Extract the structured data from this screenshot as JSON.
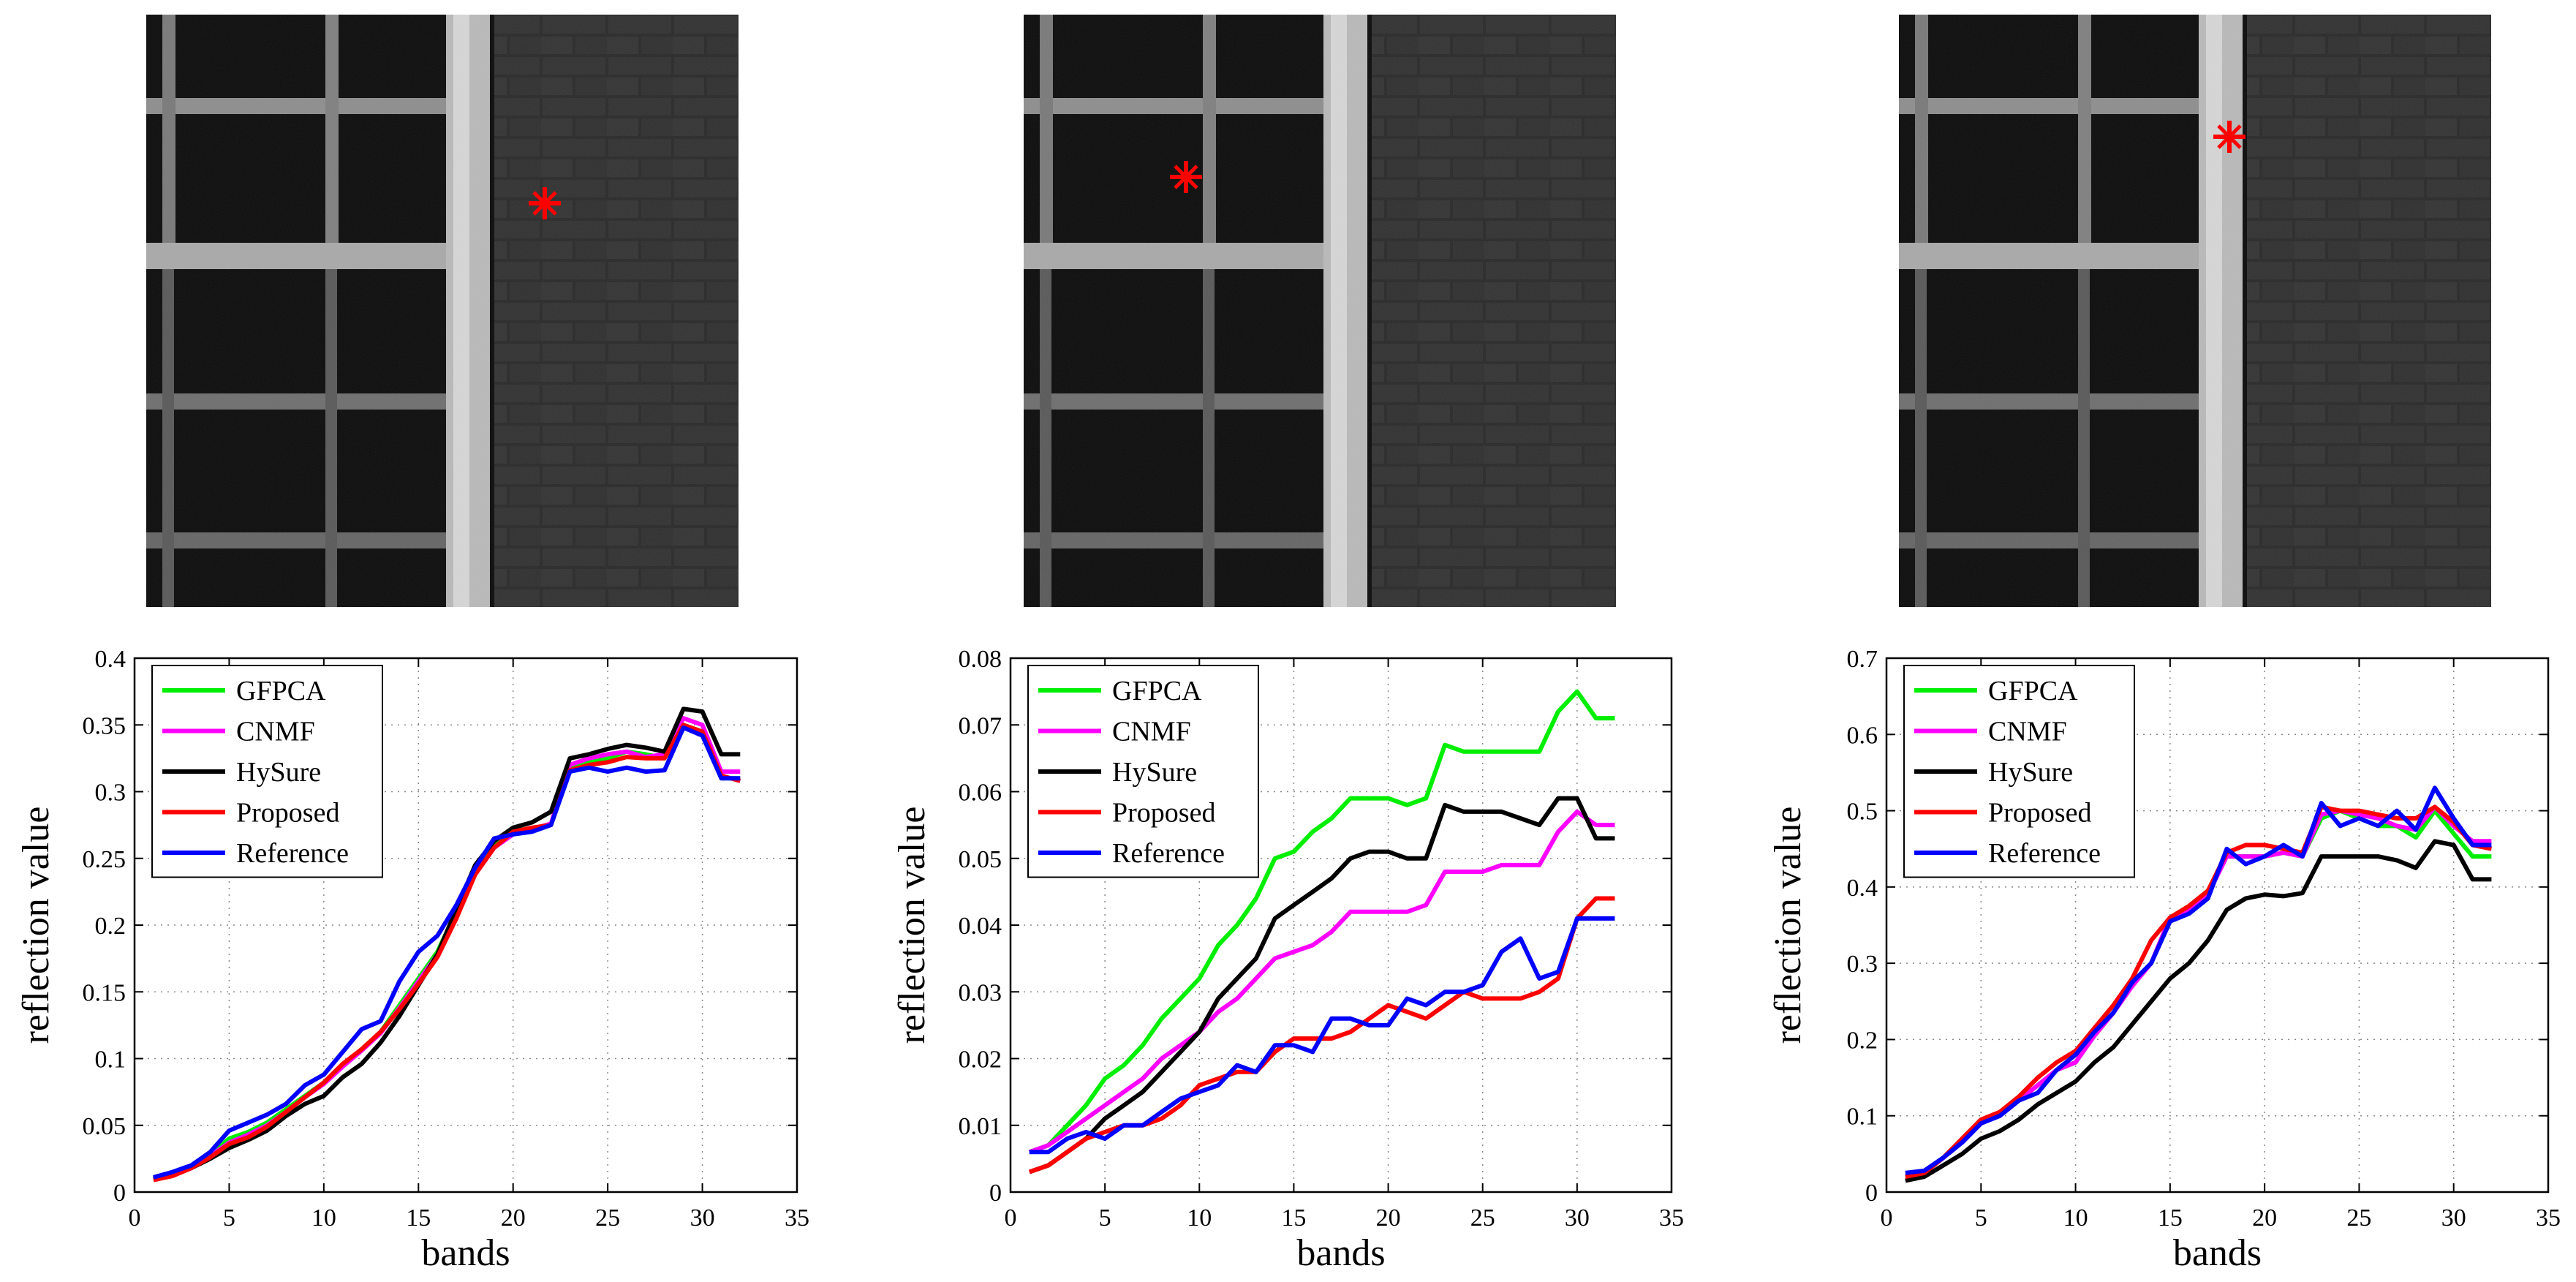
{
  "colors": {
    "GFPCA": "#00ee00",
    "CNMF": "#ff00ff",
    "HySure": "#000000",
    "Proposed": "#ff0000",
    "Reference": "#0000ff",
    "marker": "#ff0000"
  },
  "chart_data": [
    {
      "type": "line",
      "xlabel": "bands",
      "ylabel": "reflection value",
      "xlim": [
        0,
        35
      ],
      "ylim": [
        0,
        0.4
      ],
      "xticks": [
        0,
        5,
        10,
        15,
        20,
        25,
        30,
        35
      ],
      "yticks": [
        0,
        0.05,
        0.1,
        0.15,
        0.2,
        0.25,
        0.3,
        0.35,
        0.4
      ],
      "ytick_labels": [
        "0",
        "0.05",
        "0.1",
        "0.15",
        "0.2",
        "0.25",
        "0.3",
        "0.35",
        "0.4"
      ],
      "grid": true,
      "legend": "top-left",
      "x": [
        1,
        2,
        3,
        4,
        5,
        6,
        7,
        8,
        9,
        10,
        11,
        12,
        13,
        14,
        15,
        16,
        17,
        18,
        19,
        20,
        21,
        22,
        23,
        24,
        25,
        26,
        27,
        28,
        29,
        30,
        31,
        32
      ],
      "series": [
        {
          "name": "GFPCA",
          "values": [
            0.01,
            0.014,
            0.02,
            0.028,
            0.04,
            0.045,
            0.052,
            0.062,
            0.072,
            0.082,
            0.095,
            0.107,
            0.12,
            0.14,
            0.16,
            0.18,
            0.21,
            0.24,
            0.26,
            0.27,
            0.272,
            0.275,
            0.318,
            0.322,
            0.325,
            0.33,
            0.328,
            0.325,
            0.35,
            0.345,
            0.31,
            0.31
          ]
        },
        {
          "name": "CNMF",
          "values": [
            0.01,
            0.013,
            0.019,
            0.027,
            0.037,
            0.043,
            0.05,
            0.06,
            0.071,
            0.081,
            0.094,
            0.106,
            0.119,
            0.138,
            0.158,
            0.178,
            0.208,
            0.238,
            0.258,
            0.268,
            0.272,
            0.276,
            0.32,
            0.325,
            0.328,
            0.33,
            0.326,
            0.328,
            0.355,
            0.35,
            0.315,
            0.315
          ]
        },
        {
          "name": "HySure",
          "values": [
            0.01,
            0.013,
            0.018,
            0.025,
            0.033,
            0.039,
            0.046,
            0.057,
            0.066,
            0.072,
            0.086,
            0.096,
            0.112,
            0.132,
            0.155,
            0.178,
            0.212,
            0.245,
            0.263,
            0.273,
            0.277,
            0.285,
            0.325,
            0.328,
            0.332,
            0.335,
            0.333,
            0.33,
            0.362,
            0.36,
            0.328,
            0.328
          ]
        },
        {
          "name": "Proposed",
          "values": [
            0.009,
            0.012,
            0.018,
            0.026,
            0.036,
            0.041,
            0.049,
            0.06,
            0.071,
            0.082,
            0.096,
            0.107,
            0.12,
            0.137,
            0.156,
            0.176,
            0.205,
            0.238,
            0.258,
            0.27,
            0.273,
            0.275,
            0.316,
            0.32,
            0.322,
            0.326,
            0.325,
            0.325,
            0.35,
            0.345,
            0.312,
            0.308
          ]
        },
        {
          "name": "Reference",
          "values": [
            0.011,
            0.015,
            0.02,
            0.03,
            0.046,
            0.052,
            0.058,
            0.066,
            0.08,
            0.088,
            0.105,
            0.122,
            0.128,
            0.158,
            0.18,
            0.192,
            0.215,
            0.243,
            0.265,
            0.268,
            0.27,
            0.275,
            0.315,
            0.318,
            0.315,
            0.318,
            0.315,
            0.316,
            0.348,
            0.342,
            0.31,
            0.31
          ]
        }
      ]
    },
    {
      "type": "line",
      "xlabel": "bands",
      "ylabel": "reflection value",
      "xlim": [
        0,
        35
      ],
      "ylim": [
        0,
        0.08
      ],
      "xticks": [
        0,
        5,
        10,
        15,
        20,
        25,
        30,
        35
      ],
      "yticks": [
        0,
        0.01,
        0.02,
        0.03,
        0.04,
        0.05,
        0.06,
        0.07,
        0.08
      ],
      "ytick_labels": [
        "0",
        "0.01",
        "0.02",
        "0.03",
        "0.04",
        "0.05",
        "0.06",
        "0.07",
        "0.08"
      ],
      "grid": true,
      "legend": "top-left",
      "x": [
        1,
        2,
        3,
        4,
        5,
        6,
        7,
        8,
        9,
        10,
        11,
        12,
        13,
        14,
        15,
        16,
        17,
        18,
        19,
        20,
        21,
        22,
        23,
        24,
        25,
        26,
        27,
        28,
        29,
        30,
        31,
        32
      ],
      "series": [
        {
          "name": "GFPCA",
          "values": [
            0.006,
            0.007,
            0.01,
            0.013,
            0.017,
            0.019,
            0.022,
            0.026,
            0.029,
            0.032,
            0.037,
            0.04,
            0.044,
            0.05,
            0.051,
            0.054,
            0.056,
            0.059,
            0.059,
            0.059,
            0.058,
            0.059,
            0.067,
            0.066,
            0.066,
            0.066,
            0.066,
            0.066,
            0.072,
            0.075,
            0.071,
            0.071
          ]
        },
        {
          "name": "CNMF",
          "values": [
            0.006,
            0.007,
            0.009,
            0.011,
            0.013,
            0.015,
            0.017,
            0.02,
            0.022,
            0.024,
            0.027,
            0.029,
            0.032,
            0.035,
            0.036,
            0.037,
            0.039,
            0.042,
            0.042,
            0.042,
            0.042,
            0.043,
            0.048,
            0.048,
            0.048,
            0.049,
            0.049,
            0.049,
            0.054,
            0.057,
            0.055,
            0.055
          ]
        },
        {
          "name": "HySure",
          "values": [
            0.003,
            0.004,
            0.006,
            0.008,
            0.011,
            0.013,
            0.015,
            0.018,
            0.021,
            0.024,
            0.029,
            0.032,
            0.035,
            0.041,
            0.043,
            0.045,
            0.047,
            0.05,
            0.051,
            0.051,
            0.05,
            0.05,
            0.058,
            0.057,
            0.057,
            0.057,
            0.056,
            0.055,
            0.059,
            0.059,
            0.053,
            0.053
          ]
        },
        {
          "name": "Proposed",
          "values": [
            0.003,
            0.004,
            0.006,
            0.008,
            0.009,
            0.01,
            0.01,
            0.011,
            0.013,
            0.016,
            0.017,
            0.018,
            0.018,
            0.021,
            0.023,
            0.023,
            0.023,
            0.024,
            0.026,
            0.028,
            0.027,
            0.026,
            0.028,
            0.03,
            0.029,
            0.029,
            0.029,
            0.03,
            0.032,
            0.041,
            0.044,
            0.044
          ]
        },
        {
          "name": "Reference",
          "values": [
            0.006,
            0.006,
            0.008,
            0.009,
            0.008,
            0.01,
            0.01,
            0.012,
            0.014,
            0.015,
            0.016,
            0.019,
            0.018,
            0.022,
            0.022,
            0.021,
            0.026,
            0.026,
            0.025,
            0.025,
            0.029,
            0.028,
            0.03,
            0.03,
            0.031,
            0.036,
            0.038,
            0.032,
            0.033,
            0.041,
            0.041,
            0.041
          ]
        }
      ]
    },
    {
      "type": "line",
      "xlabel": "bands",
      "ylabel": "reflection value",
      "xlim": [
        0,
        35
      ],
      "ylim": [
        0,
        0.7
      ],
      "xticks": [
        0,
        5,
        10,
        15,
        20,
        25,
        30,
        35
      ],
      "yticks": [
        0,
        0.1,
        0.2,
        0.3,
        0.4,
        0.5,
        0.6,
        0.7
      ],
      "ytick_labels": [
        "0",
        "0.1",
        "0.2",
        "0.3",
        "0.4",
        "0.5",
        "0.6",
        "0.7"
      ],
      "grid": true,
      "legend": "top-left",
      "x": [
        1,
        2,
        3,
        4,
        5,
        6,
        7,
        8,
        9,
        10,
        11,
        12,
        13,
        14,
        15,
        16,
        17,
        18,
        19,
        20,
        21,
        22,
        23,
        24,
        25,
        26,
        27,
        28,
        29,
        30,
        31,
        32
      ],
      "series": [
        {
          "name": "GFPCA",
          "values": [
            0.02,
            0.025,
            0.045,
            0.065,
            0.09,
            0.1,
            0.12,
            0.14,
            0.16,
            0.17,
            0.205,
            0.235,
            0.275,
            0.3,
            0.36,
            0.375,
            0.395,
            0.44,
            0.44,
            0.44,
            0.445,
            0.44,
            0.49,
            0.5,
            0.49,
            0.48,
            0.48,
            0.465,
            0.5,
            0.47,
            0.44,
            0.44
          ]
        },
        {
          "name": "CNMF",
          "values": [
            0.02,
            0.025,
            0.045,
            0.065,
            0.09,
            0.1,
            0.12,
            0.14,
            0.16,
            0.17,
            0.205,
            0.235,
            0.27,
            0.3,
            0.36,
            0.37,
            0.39,
            0.44,
            0.44,
            0.44,
            0.445,
            0.44,
            0.495,
            0.5,
            0.495,
            0.49,
            0.48,
            0.475,
            0.505,
            0.48,
            0.46,
            0.46
          ]
        },
        {
          "name": "HySure",
          "values": [
            0.015,
            0.02,
            0.035,
            0.05,
            0.07,
            0.08,
            0.095,
            0.115,
            0.13,
            0.145,
            0.17,
            0.19,
            0.22,
            0.25,
            0.28,
            0.3,
            0.33,
            0.37,
            0.385,
            0.39,
            0.388,
            0.392,
            0.44,
            0.44,
            0.44,
            0.44,
            0.435,
            0.425,
            0.46,
            0.455,
            0.41,
            0.41
          ]
        },
        {
          "name": "Proposed",
          "values": [
            0.02,
            0.025,
            0.045,
            0.07,
            0.095,
            0.105,
            0.125,
            0.15,
            0.17,
            0.185,
            0.215,
            0.245,
            0.28,
            0.33,
            0.36,
            0.375,
            0.395,
            0.445,
            0.455,
            0.455,
            0.45,
            0.445,
            0.505,
            0.5,
            0.5,
            0.495,
            0.49,
            0.49,
            0.505,
            0.485,
            0.455,
            0.45
          ]
        },
        {
          "name": "Reference",
          "values": [
            0.025,
            0.028,
            0.045,
            0.065,
            0.09,
            0.1,
            0.12,
            0.13,
            0.16,
            0.18,
            0.21,
            0.235,
            0.275,
            0.3,
            0.355,
            0.365,
            0.385,
            0.45,
            0.43,
            0.44,
            0.455,
            0.44,
            0.51,
            0.48,
            0.49,
            0.48,
            0.5,
            0.475,
            0.53,
            0.49,
            0.455,
            0.455
          ]
        }
      ]
    }
  ]
}
